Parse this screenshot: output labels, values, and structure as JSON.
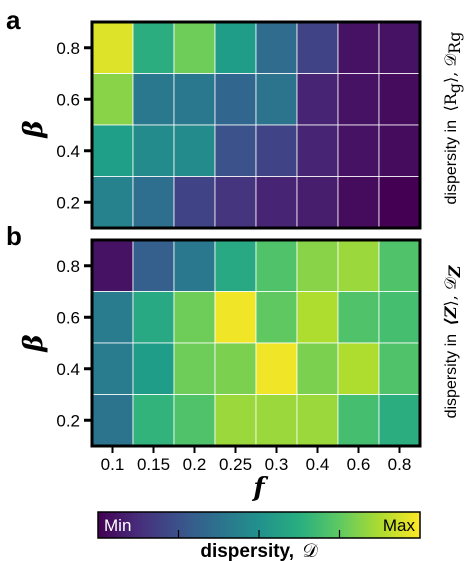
{
  "chart_data": [
    {
      "type": "heatmap",
      "panel": "a",
      "x_categories": [
        "0.1",
        "0.15",
        "0.2",
        "0.25",
        "0.3",
        "0.4",
        "0.6",
        "0.8"
      ],
      "y_categories": [
        "0.8",
        "0.6",
        "0.4",
        "0.2"
      ],
      "xlabel": "f",
      "ylabel": "β",
      "side_label": "dispersity in ⟨Rg⟩, 𝒟Rg",
      "side_label_text": "dispersity in",
      "side_label_math": "⟨R",
      "side_label_math_sub": "g",
      "side_label_math_close": "⟩, 𝒟",
      "side_label_math_sub2": "Rg",
      "values": [
        [
          0.95,
          0.62,
          0.78,
          0.55,
          0.35,
          0.2,
          0.05,
          0.05
        ],
        [
          0.82,
          0.4,
          0.4,
          0.33,
          0.38,
          0.1,
          0.05,
          0.03
        ],
        [
          0.56,
          0.48,
          0.48,
          0.25,
          0.2,
          0.1,
          0.05,
          0.03
        ],
        [
          0.45,
          0.36,
          0.2,
          0.15,
          0.1,
          0.08,
          0.03,
          0.0
        ]
      ]
    },
    {
      "type": "heatmap",
      "panel": "b",
      "x_categories": [
        "0.1",
        "0.15",
        "0.2",
        "0.25",
        "0.3",
        "0.4",
        "0.6",
        "0.8"
      ],
      "y_categories": [
        "0.8",
        "0.6",
        "0.4",
        "0.2"
      ],
      "xlabel": "f",
      "ylabel": "β",
      "side_label": "dispersity in ⟨Z⟩, 𝒟Z",
      "side_label_text": "dispersity in",
      "side_label_math": "⟨Z",
      "side_label_math_sub": "",
      "side_label_math_close": "⟩, 𝒟",
      "side_label_math_sub2": "Z",
      "values": [
        [
          0.05,
          0.3,
          0.4,
          0.6,
          0.72,
          0.82,
          0.85,
          0.72
        ],
        [
          0.42,
          0.6,
          0.78,
          0.98,
          0.75,
          0.88,
          0.72,
          0.7
        ],
        [
          0.42,
          0.55,
          0.78,
          0.8,
          0.98,
          0.8,
          0.88,
          0.72
        ],
        [
          0.38,
          0.65,
          0.72,
          0.85,
          0.85,
          0.85,
          0.7,
          0.62
        ]
      ]
    }
  ],
  "panels": {
    "a": "a",
    "b": "b"
  },
  "colorbar": {
    "min_label": "Min",
    "max_label": "Max",
    "label_text": "dispersity,",
    "label_math": "𝒟",
    "colormap": "viridis"
  },
  "colors": {
    "min_text": "#ffffff",
    "max_text": "#000000",
    "grid": "#ffffff",
    "frame": "#000000"
  }
}
